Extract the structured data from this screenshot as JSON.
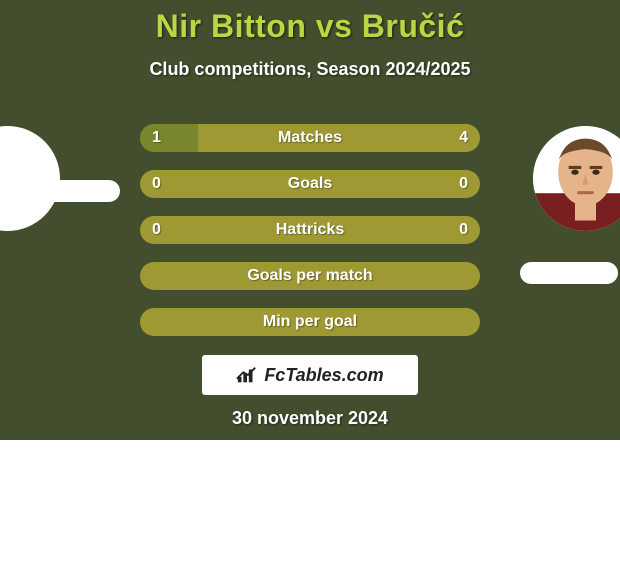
{
  "title": "Nir Bitton vs Bručić",
  "subtitle": "Club competitions, Season 2024/2025",
  "date": "30 november 2024",
  "watermark": "FcTables.com",
  "colors": {
    "background": "#424e2d",
    "title": "#b9d643",
    "bar_bg": "#9f9933",
    "bar_fill": "#79862d"
  },
  "bars": [
    {
      "label": "Matches",
      "left": "1",
      "right": "4",
      "left_pct": 17,
      "right_pct": 0
    },
    {
      "label": "Goals",
      "left": "0",
      "right": "0",
      "left_pct": 0,
      "right_pct": 0
    },
    {
      "label": "Hattricks",
      "left": "0",
      "right": "0",
      "left_pct": 0,
      "right_pct": 0
    },
    {
      "label": "Goals per match",
      "left": "",
      "right": "",
      "left_pct": 0,
      "right_pct": 0
    },
    {
      "label": "Min per goal",
      "left": "",
      "right": "",
      "left_pct": 0,
      "right_pct": 0
    }
  ]
}
